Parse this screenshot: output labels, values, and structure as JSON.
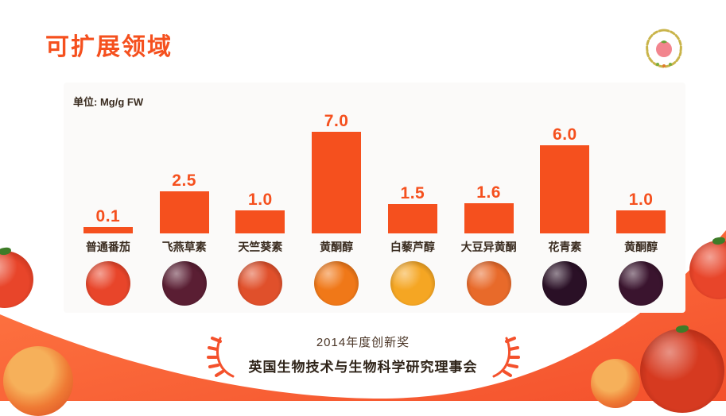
{
  "title": "可扩展领域",
  "colors": {
    "accent": "#F5501E",
    "swoosh_light": "#FF7A45",
    "swoosh_dark": "#F4512C"
  },
  "chart_data": {
    "type": "bar",
    "title": "可扩展领域",
    "unit_label": "单位: Mg/g FW",
    "categories": [
      "普通番茄",
      "飞燕草素",
      "天竺葵素",
      "黄酮醇",
      "白藜芦醇",
      "大豆异黄酮",
      "花青素",
      "黄酮醇"
    ],
    "values": [
      0.1,
      2.5,
      1.0,
      7.0,
      1.5,
      1.6,
      6.0,
      1.0
    ],
    "ylabel": "Mg/g FW",
    "ylim": [
      0,
      7.5
    ],
    "grid": false,
    "legend": "none",
    "bar_color": "#F5501E",
    "tomato_colors": [
      "#E8452A",
      "#5A1E33",
      "#E0502B",
      "#F07818",
      "#F5A623",
      "#E86A2A",
      "#2A1026",
      "#3A142E"
    ]
  },
  "award": {
    "line1": "2014年度创新奖",
    "line2": "英国生物技术与生物科学研究理事会"
  }
}
